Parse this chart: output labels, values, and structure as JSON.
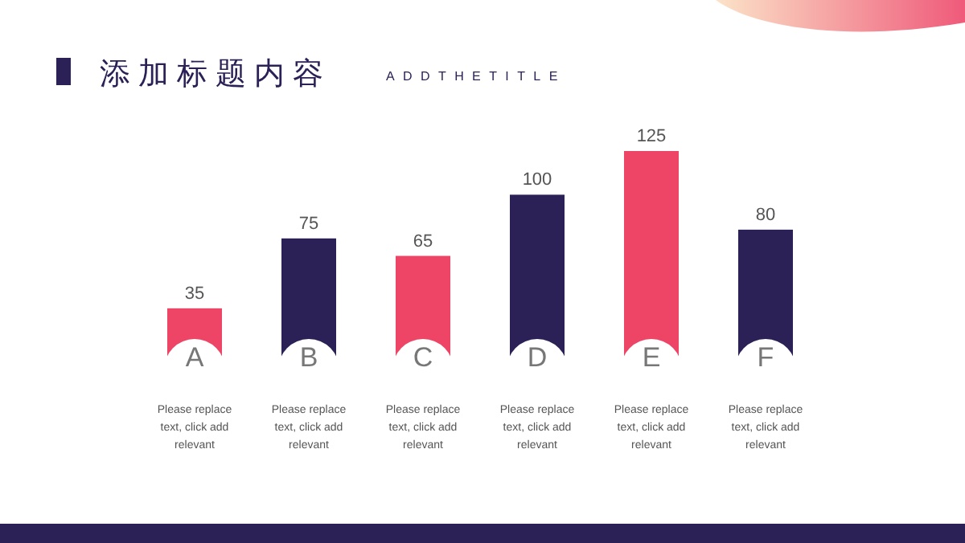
{
  "chart_data": {
    "type": "bar",
    "title": "添加标题内容",
    "subtitle": "ADDTHETITLE",
    "categories": [
      "A",
      "B",
      "C",
      "D",
      "E",
      "F"
    ],
    "values": [
      35,
      75,
      65,
      100,
      125,
      80
    ],
    "colors": [
      "#ee4466",
      "#2b2156",
      "#ee4466",
      "#2b2156",
      "#ee4466",
      "#2b2156"
    ],
    "data_labels": true,
    "annotations": [
      "Please replace text, click add relevant",
      "Please replace text, click add relevant",
      "Please replace text, click add relevant",
      "Please replace text, click add relevant",
      "Please replace text, click add relevant",
      "Please replace text, click add relevant"
    ]
  }
}
